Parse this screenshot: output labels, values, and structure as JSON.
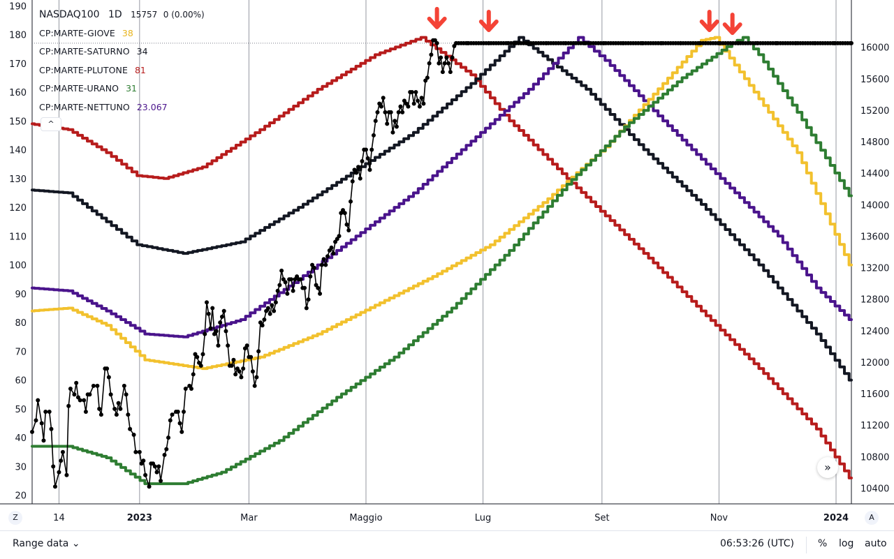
{
  "legend": {
    "symbol": "NASDAQ100",
    "interval": "1D",
    "price": "15757",
    "change": "0 (0.00%)",
    "indicators": [
      {
        "label": "CP:MARTE-GIOVE",
        "value": "38",
        "color": "#e8b41d"
      },
      {
        "label": "CP:MARTE-SATURNO",
        "value": "34",
        "color": "#131722"
      },
      {
        "label": "CP:MARTE-PLUTONE",
        "value": "81",
        "color": "#b71c1c"
      },
      {
        "label": "CP:MARTE-URANO",
        "value": "31",
        "color": "#2e7d32"
      },
      {
        "label": "CP:MARTE-NETTUNO",
        "value": "23.067",
        "color": "#4a148c"
      }
    ]
  },
  "ui": {
    "collapse_glyph": "^",
    "scroll_glyph": "»",
    "corner_left": "Z",
    "corner_right": "A"
  },
  "bottom_bar": {
    "range_label": "Range data",
    "time": "06:53:26 (UTC)",
    "percent_label": "%",
    "log_label": "log",
    "auto_label": "auto"
  },
  "chart_data": {
    "type": "line",
    "x_tick_labels": [
      {
        "t": 14,
        "label": "14"
      },
      {
        "t": 56,
        "label": "2023"
      },
      {
        "t": 113,
        "label": "Mar"
      },
      {
        "t": 174,
        "label": "Maggio"
      },
      {
        "t": 235,
        "label": "Lug"
      },
      {
        "t": 297,
        "label": "Set"
      },
      {
        "t": 358,
        "label": "Nov"
      },
      {
        "t": 419,
        "label": "2024"
      }
    ],
    "x_range": [
      0,
      427
    ],
    "left_axis": {
      "ylim": [
        17,
        192
      ],
      "ticks": [
        20,
        30,
        40,
        50,
        60,
        70,
        80,
        90,
        100,
        110,
        120,
        130,
        140,
        150,
        160,
        170,
        180,
        190
      ]
    },
    "right_axis": {
      "ylim": [
        10200,
        16600
      ],
      "ticks": [
        10400,
        10800,
        11200,
        11600,
        12000,
        12400,
        12800,
        13200,
        13600,
        14000,
        14400,
        14800,
        15200,
        15600,
        16000
      ]
    },
    "series": [
      {
        "color": "#b71c1c",
        "points": [
          [
            0,
            149
          ],
          [
            20,
            147
          ],
          [
            40,
            139
          ],
          [
            56,
            131
          ],
          [
            70,
            130
          ],
          [
            90,
            134
          ],
          [
            120,
            147
          ],
          [
            150,
            161
          ],
          [
            180,
            173
          ],
          [
            204,
            179
          ],
          [
            230,
            166
          ],
          [
            250,
            150
          ],
          [
            280,
            130
          ],
          [
            320,
            104
          ],
          [
            350,
            84
          ],
          [
            380,
            64
          ],
          [
            410,
            43
          ],
          [
            427,
            26
          ]
        ]
      },
      {
        "color": "#131722",
        "points": [
          [
            0,
            126
          ],
          [
            20,
            125
          ],
          [
            40,
            115
          ],
          [
            56,
            107
          ],
          [
            80,
            104
          ],
          [
            110,
            108
          ],
          [
            140,
            120
          ],
          [
            170,
            133
          ],
          [
            200,
            146
          ],
          [
            230,
            163
          ],
          [
            255,
            179
          ],
          [
            290,
            161
          ],
          [
            320,
            140
          ],
          [
            350,
            121
          ],
          [
            380,
            100
          ],
          [
            410,
            76
          ],
          [
            427,
            60
          ]
        ]
      },
      {
        "color": "#4a148c",
        "points": [
          [
            0,
            92
          ],
          [
            20,
            91
          ],
          [
            40,
            84
          ],
          [
            60,
            76
          ],
          [
            80,
            75
          ],
          [
            110,
            81
          ],
          [
            140,
            95
          ],
          [
            170,
            110
          ],
          [
            200,
            125
          ],
          [
            230,
            143
          ],
          [
            260,
            161
          ],
          [
            286,
            179
          ],
          [
            300,
            171
          ],
          [
            330,
            150
          ],
          [
            360,
            130
          ],
          [
            390,
            110
          ],
          [
            410,
            92
          ],
          [
            427,
            81
          ]
        ]
      },
      {
        "color": "#f2c12e",
        "points": [
          [
            0,
            84
          ],
          [
            20,
            85
          ],
          [
            40,
            79
          ],
          [
            60,
            67
          ],
          [
            90,
            64
          ],
          [
            120,
            68
          ],
          [
            150,
            76
          ],
          [
            180,
            86
          ],
          [
            210,
            96
          ],
          [
            240,
            107
          ],
          [
            270,
            123
          ],
          [
            300,
            141
          ],
          [
            330,
            163
          ],
          [
            350,
            178
          ],
          [
            357,
            179
          ],
          [
            370,
            167
          ],
          [
            400,
            139
          ],
          [
            427,
            100
          ]
        ]
      },
      {
        "color": "#2e7d32",
        "points": [
          [
            0,
            37
          ],
          [
            20,
            37
          ],
          [
            40,
            33
          ],
          [
            60,
            24
          ],
          [
            80,
            24
          ],
          [
            100,
            28
          ],
          [
            130,
            39
          ],
          [
            160,
            54
          ],
          [
            190,
            68
          ],
          [
            220,
            85
          ],
          [
            250,
            105
          ],
          [
            280,
            128
          ],
          [
            310,
            148
          ],
          [
            340,
            165
          ],
          [
            366,
            177
          ],
          [
            372,
            179
          ],
          [
            380,
            173
          ],
          [
            400,
            153
          ],
          [
            427,
            124
          ]
        ]
      }
    ],
    "price_series": {
      "color": "#000000",
      "points": [
        [
          0,
          42
        ],
        [
          2,
          46
        ],
        [
          3,
          53
        ],
        [
          5,
          45
        ],
        [
          6,
          39
        ],
        [
          7,
          49
        ],
        [
          9,
          49
        ],
        [
          10,
          43
        ],
        [
          11,
          30
        ],
        [
          12,
          23
        ],
        [
          14,
          28
        ],
        [
          15,
          32
        ],
        [
          16,
          35
        ],
        [
          18,
          27
        ],
        [
          19,
          51
        ],
        [
          20,
          57
        ],
        [
          22,
          55
        ],
        [
          23,
          59
        ],
        [
          24,
          54
        ],
        [
          25,
          53
        ],
        [
          27,
          53
        ],
        [
          28,
          49
        ],
        [
          29,
          55
        ],
        [
          30,
          55
        ],
        [
          32,
          58
        ],
        [
          34,
          58
        ],
        [
          35,
          50
        ],
        [
          36,
          48
        ],
        [
          38,
          64
        ],
        [
          39,
          64
        ],
        [
          40,
          61
        ],
        [
          41,
          55
        ],
        [
          43,
          50
        ],
        [
          44,
          48
        ],
        [
          45,
          52
        ],
        [
          46,
          50
        ],
        [
          48,
          58
        ],
        [
          49,
          55
        ],
        [
          50,
          48
        ],
        [
          51,
          43
        ],
        [
          53,
          41
        ],
        [
          54,
          35
        ],
        [
          56,
          35
        ],
        [
          57,
          31
        ],
        [
          58,
          32
        ],
        [
          59,
          27
        ],
        [
          61,
          23
        ],
        [
          62,
          31
        ],
        [
          63,
          31
        ],
        [
          64,
          30
        ],
        [
          65,
          28
        ],
        [
          66,
          30
        ],
        [
          67,
          25
        ],
        [
          69,
          34
        ],
        [
          70,
          36
        ],
        [
          71,
          40
        ],
        [
          72,
          46
        ],
        [
          73,
          48
        ],
        [
          75,
          49
        ],
        [
          76,
          49
        ],
        [
          77,
          45
        ],
        [
          78,
          42
        ],
        [
          79,
          49
        ],
        [
          80,
          57
        ],
        [
          82,
          58
        ],
        [
          83,
          57
        ],
        [
          84,
          62
        ],
        [
          85,
          69
        ],
        [
          86,
          68
        ],
        [
          87,
          66
        ],
        [
          88,
          65
        ],
        [
          89,
          69
        ],
        [
          90,
          76
        ],
        [
          91,
          87
        ],
        [
          92,
          83
        ],
        [
          93,
          78
        ],
        [
          94,
          85
        ],
        [
          95,
          76
        ],
        [
          96,
          77
        ],
        [
          97,
          72
        ],
        [
          98,
          80
        ],
        [
          99,
          82
        ],
        [
          100,
          84
        ],
        [
          101,
          77
        ],
        [
          102,
          72
        ],
        [
          103,
          65
        ],
        [
          104,
          65
        ],
        [
          105,
          67
        ],
        [
          106,
          62
        ],
        [
          107,
          64
        ],
        [
          108,
          63
        ],
        [
          109,
          61
        ],
        [
          110,
          64
        ],
        [
          111,
          71
        ],
        [
          112,
          72
        ],
        [
          113,
          68
        ],
        [
          114,
          68
        ],
        [
          115,
          63
        ],
        [
          116,
          58
        ],
        [
          117,
          61
        ],
        [
          118,
          70
        ],
        [
          119,
          80
        ],
        [
          120,
          79
        ],
        [
          121,
          81
        ],
        [
          122,
          84
        ],
        [
          123,
          85
        ],
        [
          124,
          83
        ],
        [
          125,
          86
        ],
        [
          126,
          84
        ],
        [
          127,
          87
        ],
        [
          128,
          91
        ],
        [
          129,
          93
        ],
        [
          130,
          98
        ],
        [
          131,
          95
        ],
        [
          132,
          94
        ],
        [
          133,
          90
        ],
        [
          134,
          95
        ],
        [
          135,
          95
        ],
        [
          136,
          91
        ],
        [
          137,
          95
        ],
        [
          138,
          96
        ],
        [
          139,
          95
        ],
        [
          140,
          95
        ],
        [
          141,
          92
        ],
        [
          142,
          92
        ],
        [
          143,
          85
        ],
        [
          144,
          88
        ],
        [
          145,
          96
        ],
        [
          146,
          100
        ],
        [
          147,
          99
        ],
        [
          148,
          93
        ],
        [
          149,
          92
        ],
        [
          150,
          90
        ],
        [
          151,
          100
        ],
        [
          152,
          102
        ],
        [
          153,
          100
        ],
        [
          154,
          103
        ],
        [
          155,
          105
        ],
        [
          156,
          106
        ],
        [
          157,
          104
        ],
        [
          158,
          108
        ],
        [
          159,
          109
        ],
        [
          160,
          110
        ],
        [
          161,
          118
        ],
        [
          162,
          119
        ],
        [
          163,
          118
        ],
        [
          164,
          114
        ],
        [
          165,
          112
        ],
        [
          166,
          122
        ],
        [
          167,
          129
        ],
        [
          168,
          133
        ],
        [
          169,
          132
        ],
        [
          170,
          134
        ],
        [
          171,
          130
        ],
        [
          172,
          136
        ],
        [
          173,
          140
        ],
        [
          174,
          140
        ],
        [
          175,
          137
        ],
        [
          176,
          133
        ],
        [
          177,
          140
        ],
        [
          178,
          145
        ],
        [
          179,
          150
        ],
        [
          180,
          153
        ],
        [
          181,
          156
        ],
        [
          182,
          155
        ],
        [
          183,
          158
        ],
        [
          184,
          153
        ],
        [
          185,
          149
        ],
        [
          186,
          153
        ],
        [
          187,
          153
        ],
        [
          188,
          146
        ],
        [
          189,
          150
        ],
        [
          190,
          148
        ],
        [
          191,
          153
        ],
        [
          192,
          155
        ],
        [
          193,
          153
        ],
        [
          194,
          157
        ],
        [
          195,
          156
        ],
        [
          196,
          155
        ],
        [
          197,
          160
        ],
        [
          198,
          160
        ],
        [
          199,
          156
        ],
        [
          200,
          160
        ],
        [
          201,
          157
        ],
        [
          202,
          155
        ],
        [
          203,
          158
        ],
        [
          204,
          156
        ],
        [
          205,
          164
        ],
        [
          206,
          165
        ],
        [
          207,
          170
        ],
        [
          208,
          173
        ],
        [
          209,
          178
        ],
        [
          210,
          178
        ],
        [
          211,
          177
        ],
        [
          212,
          170
        ],
        [
          213,
          172
        ],
        [
          214,
          167
        ],
        [
          215,
          170
        ],
        [
          216,
          172
        ],
        [
          217,
          170
        ],
        [
          218,
          167
        ],
        [
          219,
          172
        ],
        [
          220,
          176
        ],
        [
          221,
          177
        ],
        [
          227,
          177
        ],
        [
          238,
          177
        ],
        [
          248,
          177
        ],
        [
          258,
          177
        ],
        [
          268,
          177
        ],
        [
          278,
          177
        ],
        [
          288,
          177
        ],
        [
          298,
          177
        ],
        [
          308,
          177
        ],
        [
          318,
          177
        ],
        [
          328,
          177
        ],
        [
          338,
          177
        ],
        [
          348,
          177
        ],
        [
          358,
          177
        ],
        [
          368,
          177
        ],
        [
          378,
          177
        ],
        [
          388,
          177
        ],
        [
          398,
          177
        ],
        [
          408,
          177
        ],
        [
          418,
          177
        ],
        [
          427,
          177
        ]
      ]
    },
    "reference_level": 177,
    "arrows_at": [
      [
        211,
        185
      ],
      [
        238,
        184
      ],
      [
        353,
        184
      ],
      [
        365,
        183
      ]
    ]
  }
}
